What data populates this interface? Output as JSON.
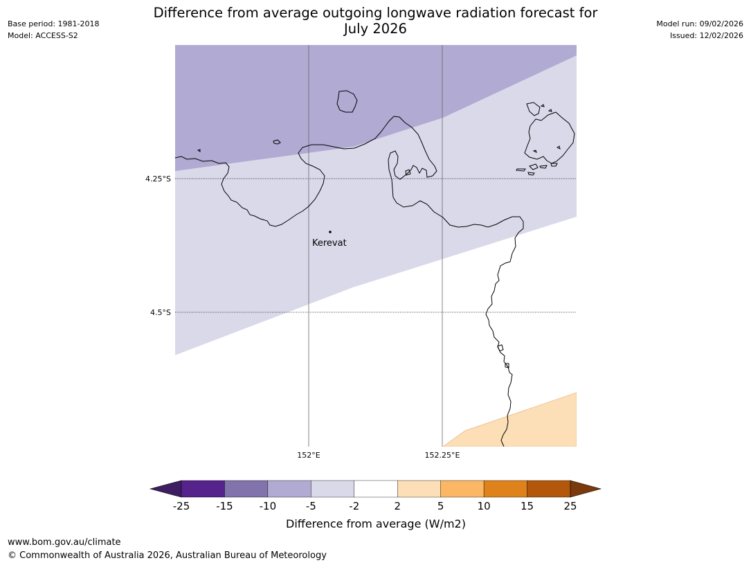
{
  "header": {
    "base_period": "Base period: 1981-2018",
    "model": "Model: ACCESS-S2",
    "model_run": "Model run: 09/02/2026",
    "issued": "Issued: 12/02/2026",
    "title_line1": "Difference from average outgoing longwave radiation forecast for",
    "title_line2": "July 2026"
  },
  "map": {
    "lat_labels": [
      "4.25°S",
      "4.5°S"
    ],
    "lon_labels": [
      "152°E",
      "152.25°E"
    ],
    "place_name": "Kerevat"
  },
  "colorbar": {
    "label": "Difference from average (W/m2)",
    "ticks": [
      "-25",
      "-15",
      "-10",
      "-5",
      "-2",
      "2",
      "5",
      "10",
      "15",
      "25"
    ],
    "colors": [
      "#3f1d62",
      "#56228b",
      "#8373ac",
      "#b1aad2",
      "#d9d9ea",
      "#ffffff",
      "#fcdfb6",
      "#fbb763",
      "#e0821b",
      "#b3580b",
      "#7a3a0e"
    ]
  },
  "footer": {
    "url": "www.bom.gov.au/climate",
    "copyright": "© Commonwealth of Australia 2026, Australian Bureau of Meteorology"
  }
}
